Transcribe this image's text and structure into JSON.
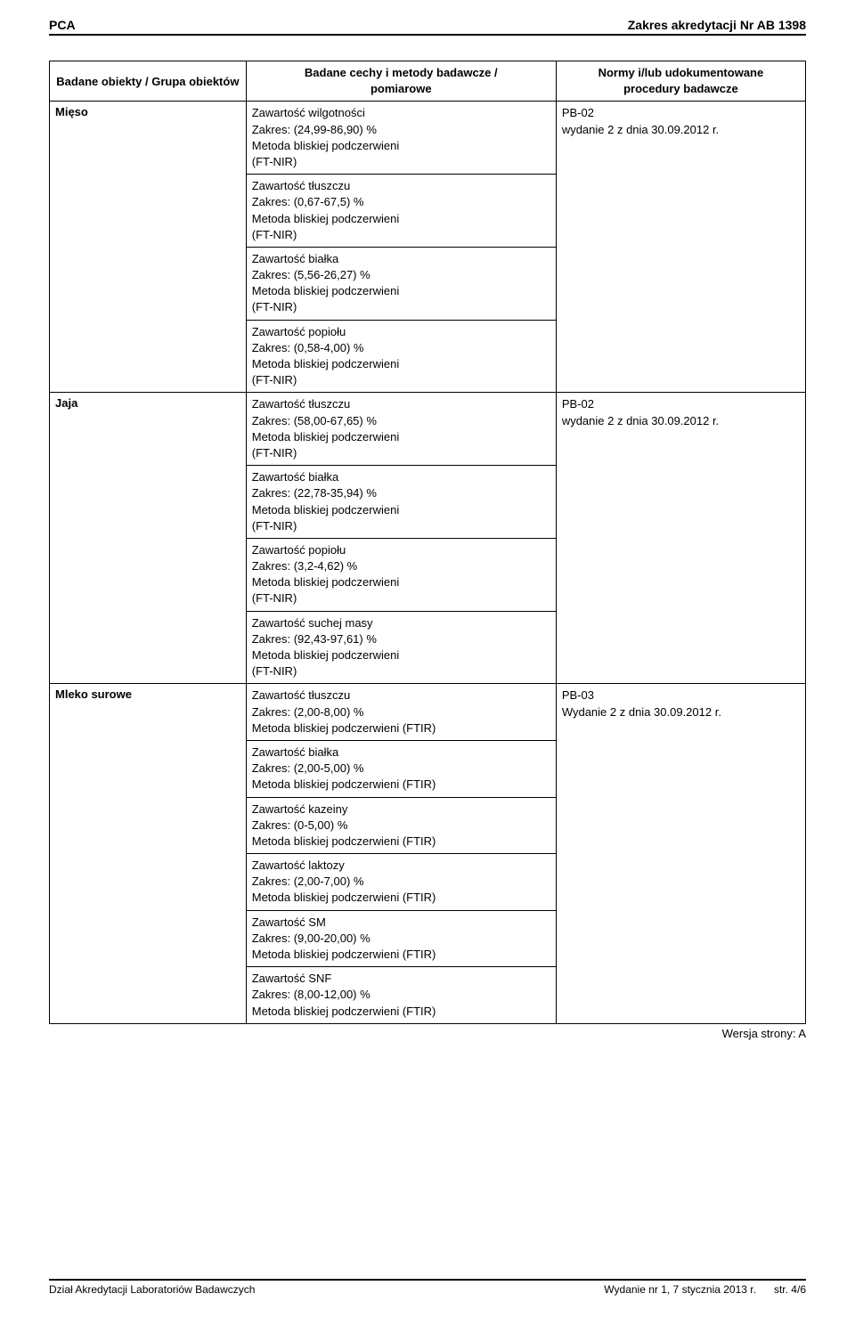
{
  "header": {
    "left": "PCA",
    "right": "Zakres akredytacji Nr AB 1398"
  },
  "table": {
    "headers": {
      "col1": "Badane obiekty / Grupa obiektów",
      "col2_line1": "Badane cechy i metody badawcze /",
      "col2_line2": "pomiarowe",
      "col3_line1": "Normy i/lub udokumentowane",
      "col3_line2": "procedury badawcze"
    },
    "groups": [
      {
        "object": "Mięso",
        "norm_line1": "PB-02",
        "norm_line2": "wydanie 2 z dnia 30.09.2012 r.",
        "methods": [
          {
            "l1": "Zawartość wilgotności",
            "l2": "Zakres: (24,99-86,90) %",
            "l3": "Metoda bliskiej podczerwieni",
            "l4": "(FT-NIR)"
          },
          {
            "l1": "Zawartość tłuszczu",
            "l2": "Zakres: (0,67-67,5) %",
            "l3": "Metoda bliskiej podczerwieni",
            "l4": "(FT-NIR)"
          },
          {
            "l1": "Zawartość białka",
            "l2": "Zakres: (5,56-26,27) %",
            "l3": "Metoda bliskiej podczerwieni",
            "l4": "(FT-NIR)"
          },
          {
            "l1": "Zawartość popiołu",
            "l2": "Zakres: (0,58-4,00) %",
            "l3": "Metoda bliskiej podczerwieni",
            "l4": "(FT-NIR)"
          }
        ]
      },
      {
        "object": "Jaja",
        "norm_line1": "PB-02",
        "norm_line2": "wydanie 2 z dnia 30.09.2012 r.",
        "methods": [
          {
            "l1": "Zawartość tłuszczu",
            "l2": "Zakres: (58,00-67,65) %",
            "l3": "Metoda bliskiej podczerwieni",
            "l4": "(FT-NIR)"
          },
          {
            "l1": "Zawartość białka",
            "l2": "Zakres: (22,78-35,94) %",
            "l3": "Metoda bliskiej podczerwieni",
            "l4": "(FT-NIR)"
          },
          {
            "l1": "Zawartość popiołu",
            "l2": "Zakres: (3,2-4,62) %",
            "l3": "Metoda bliskiej podczerwieni",
            "l4": "(FT-NIR)"
          },
          {
            "l1": "Zawartość suchej masy",
            "l2": "Zakres: (92,43-97,61) %",
            "l3": "Metoda bliskiej podczerwieni",
            "l4": "(FT-NIR)"
          }
        ]
      },
      {
        "object": "Mleko surowe",
        "norm_line1": "PB-03",
        "norm_line2": "Wydanie 2 z dnia 30.09.2012 r.",
        "methods": [
          {
            "l1": "Zawartość tłuszczu",
            "l2": "Zakres: (2,00-8,00) %",
            "l3": "Metoda bliskiej podczerwieni (FTIR)"
          },
          {
            "l1": "Zawartość białka",
            "l2": "Zakres: (2,00-5,00) %",
            "l3": "Metoda bliskiej podczerwieni (FTIR)"
          },
          {
            "l1": "Zawartość kazeiny",
            "l2": "Zakres: (0-5,00) %",
            "l3": "Metoda bliskiej podczerwieni (FTIR)"
          },
          {
            "l1": "Zawartość laktozy",
            "l2": "Zakres: (2,00-7,00) %",
            "l3": "Metoda bliskiej podczerwieni (FTIR)"
          },
          {
            "l1": "Zawartość SM",
            "l2": "Zakres: (9,00-20,00) %",
            "l3": "Metoda bliskiej podczerwieni (FTIR)"
          },
          {
            "l1": "Zawartość SNF",
            "l2": "Zakres: (8,00-12,00) %",
            "l3": "Metoda bliskiej podczerwieni (FTIR)"
          }
        ]
      }
    ]
  },
  "version": "Wersja strony: A",
  "footer": {
    "left": "Dział Akredytacji Laboratoriów Badawczych",
    "right_part1": "Wydanie nr 1, 7 stycznia 2013 r.",
    "right_part2": "str. 4/6"
  }
}
